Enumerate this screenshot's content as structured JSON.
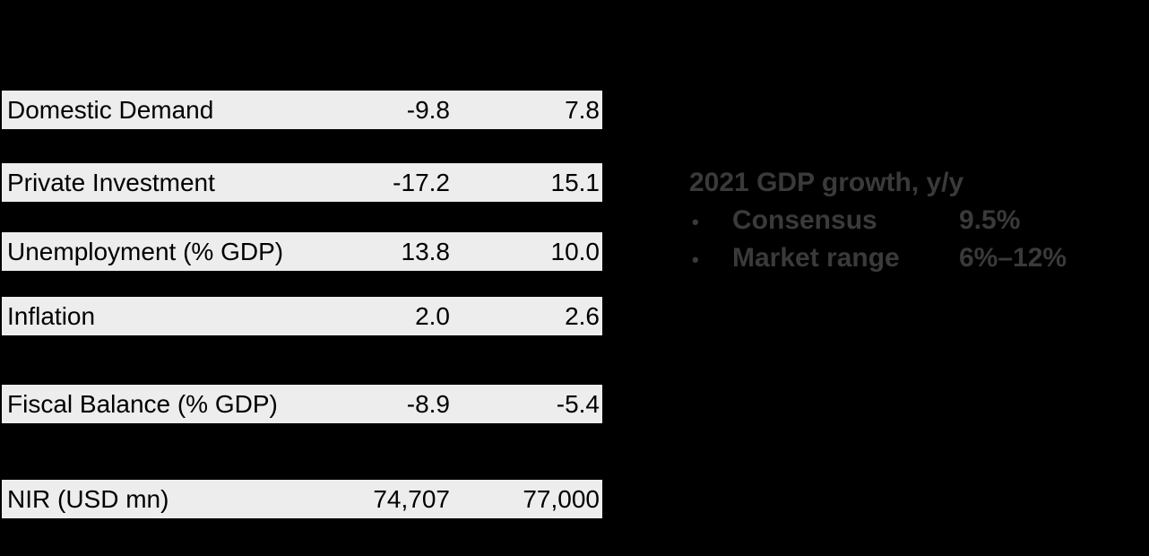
{
  "page": {
    "background": "#000000"
  },
  "table": {
    "row_background": "#EDEDED",
    "text_color": "#000000",
    "rows": [
      {
        "label": "Domestic Demand",
        "col1": "-9.8",
        "col2": "7.8"
      },
      {
        "label": "Private Investment",
        "col1": "-17.2",
        "col2": "15.1"
      },
      {
        "label": "Unemployment (% GDP)",
        "col1": "13.8",
        "col2": "10.0"
      },
      {
        "label": "Inflation",
        "col1": "2.0",
        "col2": "2.6"
      },
      {
        "label": "Fiscal Balance (% GDP)",
        "col1": "-8.9",
        "col2": "-5.4"
      },
      {
        "label": "NIR (USD mn)",
        "col1": "74,707",
        "col2": "77,000"
      }
    ]
  },
  "note": {
    "text_color": "#3A3A3A",
    "title": "2021 GDP growth, y/y",
    "items": [
      {
        "bullet": "•",
        "label": "Consensus",
        "value": "9.5%"
      },
      {
        "bullet": "•",
        "label": "Market range",
        "value": "6%–12%"
      }
    ]
  },
  "chart_data": {
    "type": "table",
    "row_labels": [
      "Domestic Demand",
      "Private Investment",
      "Unemployment (% GDP)",
      "Inflation",
      "Fiscal Balance (% GDP)",
      "NIR (USD mn)"
    ],
    "values": [
      [
        -9.8,
        7.8
      ],
      [
        -17.2,
        15.1
      ],
      [
        13.8,
        10.0
      ],
      [
        2.0,
        2.6
      ],
      [
        -8.9,
        -5.4
      ],
      [
        74707,
        77000
      ]
    ],
    "annotations": [
      "2021 GDP growth, y/y",
      "Consensus 9.5%",
      "Market range 6%–12%"
    ],
    "layout": "table rows on black background, two right-aligned numeric columns, note block at right"
  }
}
